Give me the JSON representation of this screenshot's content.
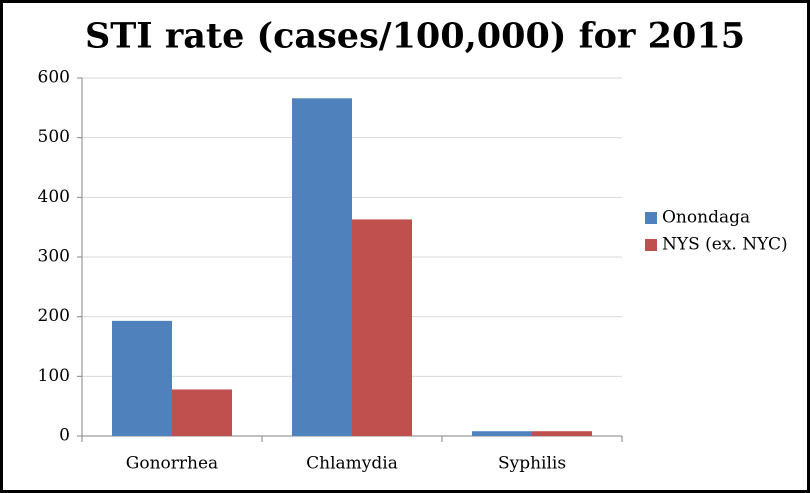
{
  "chart_data": {
    "type": "bar",
    "title": "STI rate (cases/100,000) for 2015",
    "categories": [
      "Gonorrhea",
      "Chlamydia",
      "Syphilis"
    ],
    "series": [
      {
        "name": "Onondaga",
        "color": "#4f81bd",
        "values": [
          193,
          566,
          8
        ]
      },
      {
        "name": "NYS (ex. NYC)",
        "color": "#c0504d",
        "values": [
          78,
          363,
          8
        ]
      }
    ],
    "ylim": [
      0,
      600
    ],
    "yticks": [
      0,
      100,
      200,
      300,
      400,
      500,
      600
    ],
    "grid": true,
    "legend": "right"
  }
}
